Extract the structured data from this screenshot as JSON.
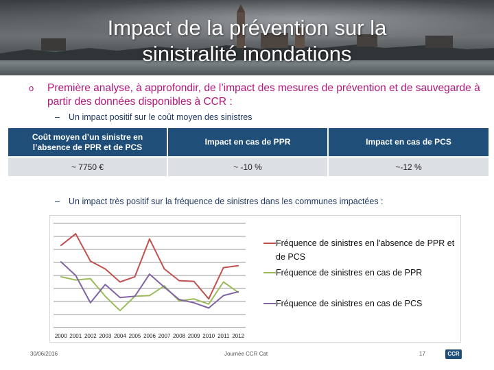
{
  "slide": {
    "title": "Impact de la prévention sur la\nsinistralité inondations",
    "bullet": "Première analyse, à approfondir, de l’impact des mesures de prévention et de sauvegarde à partir des données disponibles à CCR :",
    "bullet_marker": "o",
    "sub1": "Un impact positif sur le coût moyen des sinistres",
    "sub2": "Un impact très positif sur la fréquence de sinistres dans les communes impactées :",
    "dash": "–"
  },
  "table": {
    "headers": [
      "Coût moyen d’un sinistre en l’absence de PPR et de PCS",
      "Impact en cas de PPR",
      "Impact en cas de PCS"
    ],
    "row": [
      "~ 7750 €",
      "~ -10 %",
      "~-12 %"
    ]
  },
  "chart_data": {
    "type": "line",
    "x": [
      "2000",
      "2001",
      "2002",
      "2003",
      "2004",
      "2005",
      "2006",
      "2007",
      "2008",
      "2009",
      "2010",
      "2011",
      "2012"
    ],
    "y_gridlines": 8,
    "series": [
      {
        "name": "Fréquence de sinistres en l'absence de PPR et de PCS",
        "color": "#c0504d",
        "values": [
          6.3,
          7.2,
          5.1,
          4.5,
          3.5,
          3.9,
          6.8,
          4.5,
          3.6,
          3.55,
          2.2,
          4.6,
          4.75
        ]
      },
      {
        "name": "Fréquence de sinistres en cas de PPR",
        "color": "#9bbb59",
        "values": [
          3.9,
          3.65,
          3.75,
          2.4,
          1.3,
          2.4,
          2.45,
          3.2,
          2.05,
          2.2,
          1.8,
          3.5,
          2.7
        ]
      },
      {
        "name": "Fréquence de sinistres en cas de PCS",
        "color": "#8064a2",
        "values": [
          5.05,
          4.0,
          1.9,
          3.3,
          2.3,
          2.4,
          4.1,
          3.1,
          2.15,
          1.9,
          1.5,
          2.45,
          2.75
        ]
      }
    ],
    "ylim": [
      0,
      8
    ]
  },
  "footer": {
    "date": "30/06/2016",
    "event": "Journée CCR Cat",
    "page": "17",
    "logo": "CCR"
  }
}
